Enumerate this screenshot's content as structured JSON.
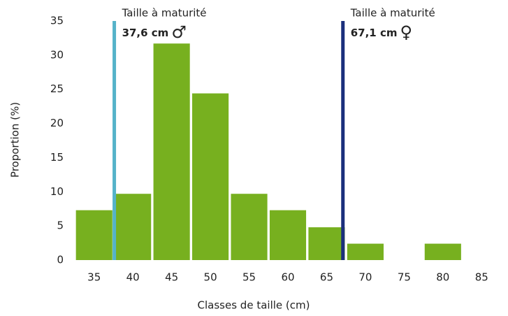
{
  "chart_data": {
    "type": "bar",
    "x": [
      35,
      40,
      45,
      50,
      55,
      60,
      65,
      70,
      75,
      80,
      85
    ],
    "values": [
      7.3,
      9.7,
      31.7,
      24.4,
      9.7,
      7.3,
      4.8,
      2.4,
      0,
      2.4,
      0
    ],
    "color": "#77b01f",
    "xlim": [
      32.5,
      87.5
    ],
    "ylim": [
      0,
      35
    ],
    "yticks": [
      0,
      5,
      10,
      15,
      20,
      25,
      30,
      35
    ],
    "xlabel": "Classes de taille (cm)",
    "ylabel": "Proportion (%)",
    "grid": false,
    "annotations": [
      {
        "x": 37.6,
        "title": "Taille à maturité",
        "label": "37,6 cm",
        "symbol": "♂",
        "color": "#55b3c9"
      },
      {
        "x": 67.1,
        "title": "Taille à maturité",
        "label": "67,1 cm",
        "symbol": "♀",
        "color": "#1b2f7c"
      }
    ]
  }
}
